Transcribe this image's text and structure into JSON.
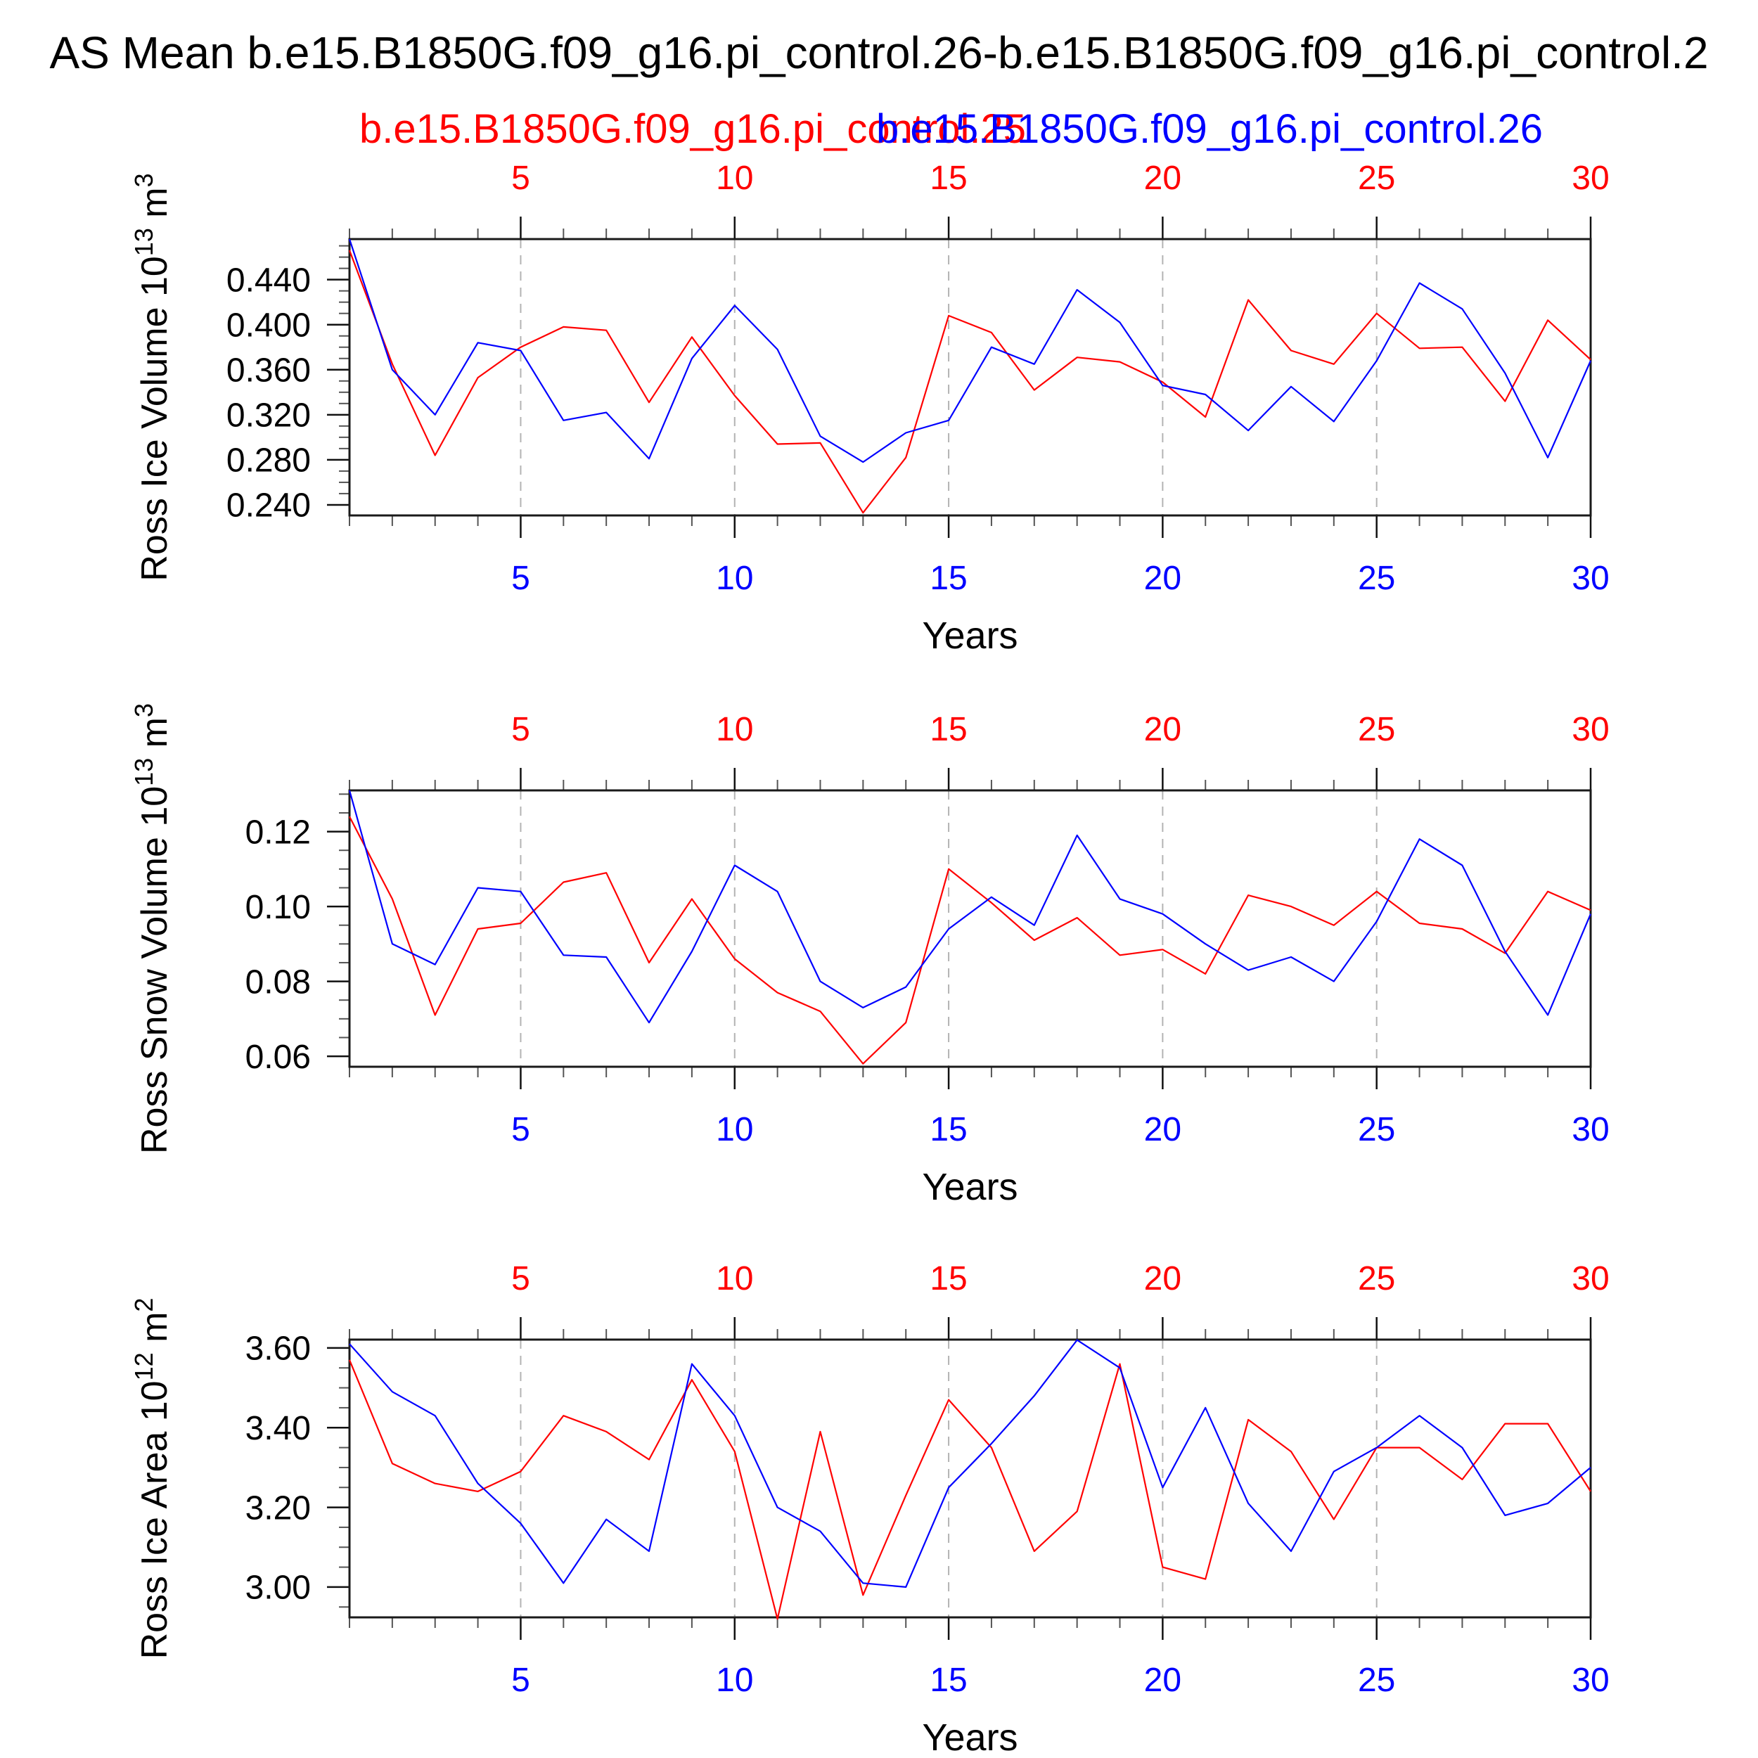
{
  "title": "AS Mean b.e15.B1850G.f09_g16.pi_control.26-b.e15.B1850G.f09_g16.pi_control.2",
  "legend": {
    "red_label": "b.e15.B1850G.f09_g16.pi_control.25",
    "blue_label": "b.e15.B1850G.f09_g16.pi_control.26"
  },
  "colors": {
    "red_series": "#ff0000",
    "blue_series": "#0000ff",
    "grid": "#b3b3b3",
    "frame": "#1a1a1a",
    "minor_tick": "#555555",
    "major_tick": "#111111",
    "text": "#000000"
  },
  "chart_data": [
    {
      "type": "line",
      "ylabel_parts": [
        [
          "t",
          "Ross Ice Volume 10"
        ],
        [
          "s",
          "13"
        ],
        [
          "t",
          " m"
        ],
        [
          "s",
          "3"
        ]
      ],
      "xlabel": "Years",
      "x": [
        1,
        2,
        3,
        4,
        5,
        6,
        7,
        8,
        9,
        10,
        11,
        12,
        13,
        14,
        15,
        16,
        17,
        18,
        19,
        20,
        21,
        22,
        23,
        24,
        25,
        26,
        27,
        28,
        29,
        30
      ],
      "x_major_ticks": [
        5,
        10,
        15,
        20,
        25,
        30
      ],
      "grid_years": [
        5,
        10,
        15,
        20,
        25
      ],
      "xlim": [
        1,
        30
      ],
      "ylim": [
        0.2306,
        0.476
      ],
      "y_tick_labels": [
        "0.440",
        "0.400",
        "0.360",
        "0.320",
        "0.280",
        "0.240"
      ],
      "y_tick_values": [
        0.44,
        0.4,
        0.36,
        0.32,
        0.28,
        0.24
      ],
      "y_minor_step": 0.01,
      "series": [
        {
          "name": "b.e15.B1850G.f09_g16.pi_control.25",
          "color": "red_series",
          "values": [
            0.466,
            0.365,
            0.284,
            0.353,
            0.38,
            0.398,
            0.395,
            0.331,
            0.389,
            0.337,
            0.294,
            0.295,
            0.233,
            0.282,
            0.408,
            0.393,
            0.342,
            0.371,
            0.367,
            0.349,
            0.318,
            0.422,
            0.377,
            0.365,
            0.41,
            0.379,
            0.38,
            0.332,
            0.404,
            0.369
          ]
        },
        {
          "name": "b.e15.B1850G.f09_g16.pi_control.26",
          "color": "blue_series",
          "values": [
            0.476,
            0.36,
            0.32,
            0.384,
            0.377,
            0.315,
            0.322,
            0.281,
            0.37,
            0.417,
            0.378,
            0.301,
            0.278,
            0.304,
            0.315,
            0.38,
            0.365,
            0.431,
            0.402,
            0.346,
            0.338,
            0.306,
            0.345,
            0.314,
            0.368,
            0.437,
            0.414,
            0.357,
            0.282,
            0.368
          ]
        }
      ]
    },
    {
      "type": "line",
      "ylabel_parts": [
        [
          "t",
          "Ross Snow Volume 10"
        ],
        [
          "s",
          "13"
        ],
        [
          "t",
          " m"
        ],
        [
          "s",
          "3"
        ]
      ],
      "xlabel": "Years",
      "x": [
        1,
        2,
        3,
        4,
        5,
        6,
        7,
        8,
        9,
        10,
        11,
        12,
        13,
        14,
        15,
        16,
        17,
        18,
        19,
        20,
        21,
        22,
        23,
        24,
        25,
        26,
        27,
        28,
        29,
        30
      ],
      "x_major_ticks": [
        5,
        10,
        15,
        20,
        25,
        30
      ],
      "grid_years": [
        5,
        10,
        15,
        20,
        25
      ],
      "xlim": [
        1,
        30
      ],
      "ylim": [
        0.0572,
        0.131
      ],
      "y_tick_labels": [
        "0.12",
        "0.10",
        "0.08",
        "0.06"
      ],
      "y_tick_values": [
        0.12,
        0.1,
        0.08,
        0.06
      ],
      "y_minor_step": 0.005,
      "series": [
        {
          "name": "b.e15.B1850G.f09_g16.pi_control.25",
          "color": "red_series",
          "values": [
            0.124,
            0.102,
            0.071,
            0.094,
            0.0955,
            0.1065,
            0.109,
            0.085,
            0.102,
            0.086,
            0.077,
            0.072,
            0.058,
            0.069,
            0.11,
            0.101,
            0.091,
            0.097,
            0.087,
            0.0885,
            0.082,
            0.103,
            0.1,
            0.095,
            0.104,
            0.0955,
            0.094,
            0.0875,
            0.104,
            0.099
          ]
        },
        {
          "name": "b.e15.B1850G.f09_g16.pi_control.26",
          "color": "blue_series",
          "values": [
            0.131,
            0.09,
            0.0845,
            0.105,
            0.104,
            0.087,
            0.0865,
            0.069,
            0.088,
            0.111,
            0.104,
            0.08,
            0.073,
            0.0785,
            0.094,
            0.1025,
            0.095,
            0.119,
            0.102,
            0.098,
            0.09,
            0.083,
            0.0865,
            0.08,
            0.096,
            0.118,
            0.111,
            0.088,
            0.071,
            0.098
          ]
        }
      ]
    },
    {
      "type": "line",
      "ylabel_parts": [
        [
          "t",
          "Ross Ice Area 10"
        ],
        [
          "s",
          "12"
        ],
        [
          "t",
          " m"
        ],
        [
          "s",
          "2"
        ]
      ],
      "xlabel": "Years",
      "x": [
        1,
        2,
        3,
        4,
        5,
        6,
        7,
        8,
        9,
        10,
        11,
        12,
        13,
        14,
        15,
        16,
        17,
        18,
        19,
        20,
        21,
        22,
        23,
        24,
        25,
        26,
        27,
        28,
        29,
        30
      ],
      "x_major_ticks": [
        5,
        10,
        15,
        20,
        25,
        30
      ],
      "grid_years": [
        5,
        10,
        15,
        20,
        25
      ],
      "xlim": [
        1,
        30
      ],
      "ylim": [
        2.924,
        3.621
      ],
      "y_tick_labels": [
        "3.60",
        "3.40",
        "3.20",
        "3.00"
      ],
      "y_tick_values": [
        3.6,
        3.4,
        3.2,
        3.0
      ],
      "y_minor_step": 0.05,
      "series": [
        {
          "name": "b.e15.B1850G.f09_g16.pi_control.25",
          "color": "red_series",
          "values": [
            3.57,
            3.31,
            3.26,
            3.24,
            3.29,
            3.43,
            3.39,
            3.32,
            3.52,
            3.34,
            2.92,
            3.39,
            2.98,
            3.23,
            3.47,
            3.35,
            3.09,
            3.19,
            3.56,
            3.05,
            3.02,
            3.42,
            3.34,
            3.17,
            3.35,
            3.35,
            3.27,
            3.41,
            3.41,
            3.24
          ]
        },
        {
          "name": "b.e15.B1850G.f09_g16.pi_control.26",
          "color": "blue_series",
          "values": [
            3.61,
            3.49,
            3.43,
            3.26,
            3.16,
            3.01,
            3.17,
            3.09,
            3.56,
            3.43,
            3.2,
            3.14,
            3.01,
            3.0,
            3.25,
            3.36,
            3.48,
            3.62,
            3.55,
            3.25,
            3.45,
            3.21,
            3.09,
            3.29,
            3.35,
            3.43,
            3.35,
            3.18,
            3.21,
            3.3
          ]
        }
      ]
    }
  ]
}
